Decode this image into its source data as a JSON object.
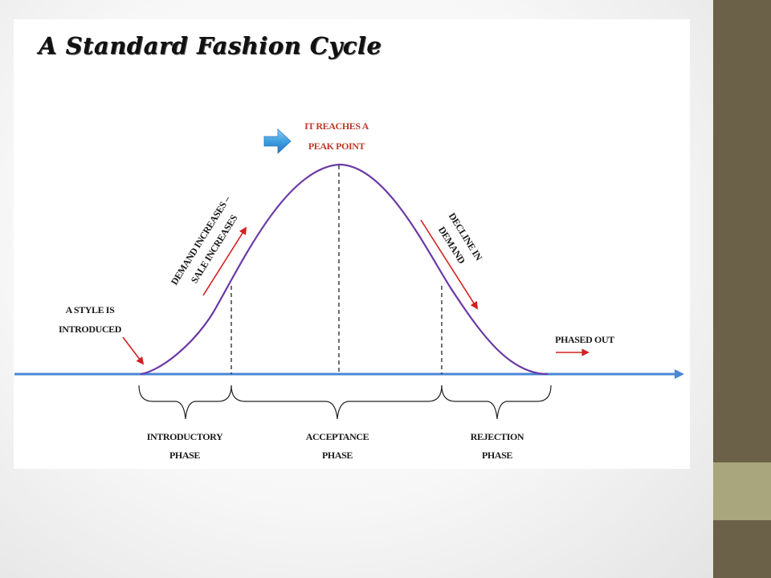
{
  "slide": {
    "title": "A Standard Fashion Cycle",
    "colors": {
      "sidebar_dark": "#6b6149",
      "sidebar_light": "#a9a57c",
      "axis": "#4a86d4",
      "curve": "#6a3aa6",
      "arrows": "#d42020",
      "peak_label": "#c0392b"
    }
  },
  "labels": {
    "peak_line1": "IT REACHES A",
    "peak_line2": "PEAK POINT",
    "demand_line1": "DEMAND INCREASES –",
    "demand_line2": "SALE INCREASES",
    "decline_line1": "DECLINE IN",
    "decline_line2": "DEMAND",
    "style_line1": "A STYLE IS",
    "style_line2": "INTRODUCED",
    "phased_out": "PHASED OUT"
  },
  "phases": [
    {
      "line1": "INTRODUCTORY",
      "line2": "PHASE"
    },
    {
      "line1": "ACCEPTANCE",
      "line2": "PHASE"
    },
    {
      "line1": "REJECTION",
      "line2": "PHASE"
    }
  ],
  "icons": {
    "peak_pointer": "right-arrow-icon"
  }
}
